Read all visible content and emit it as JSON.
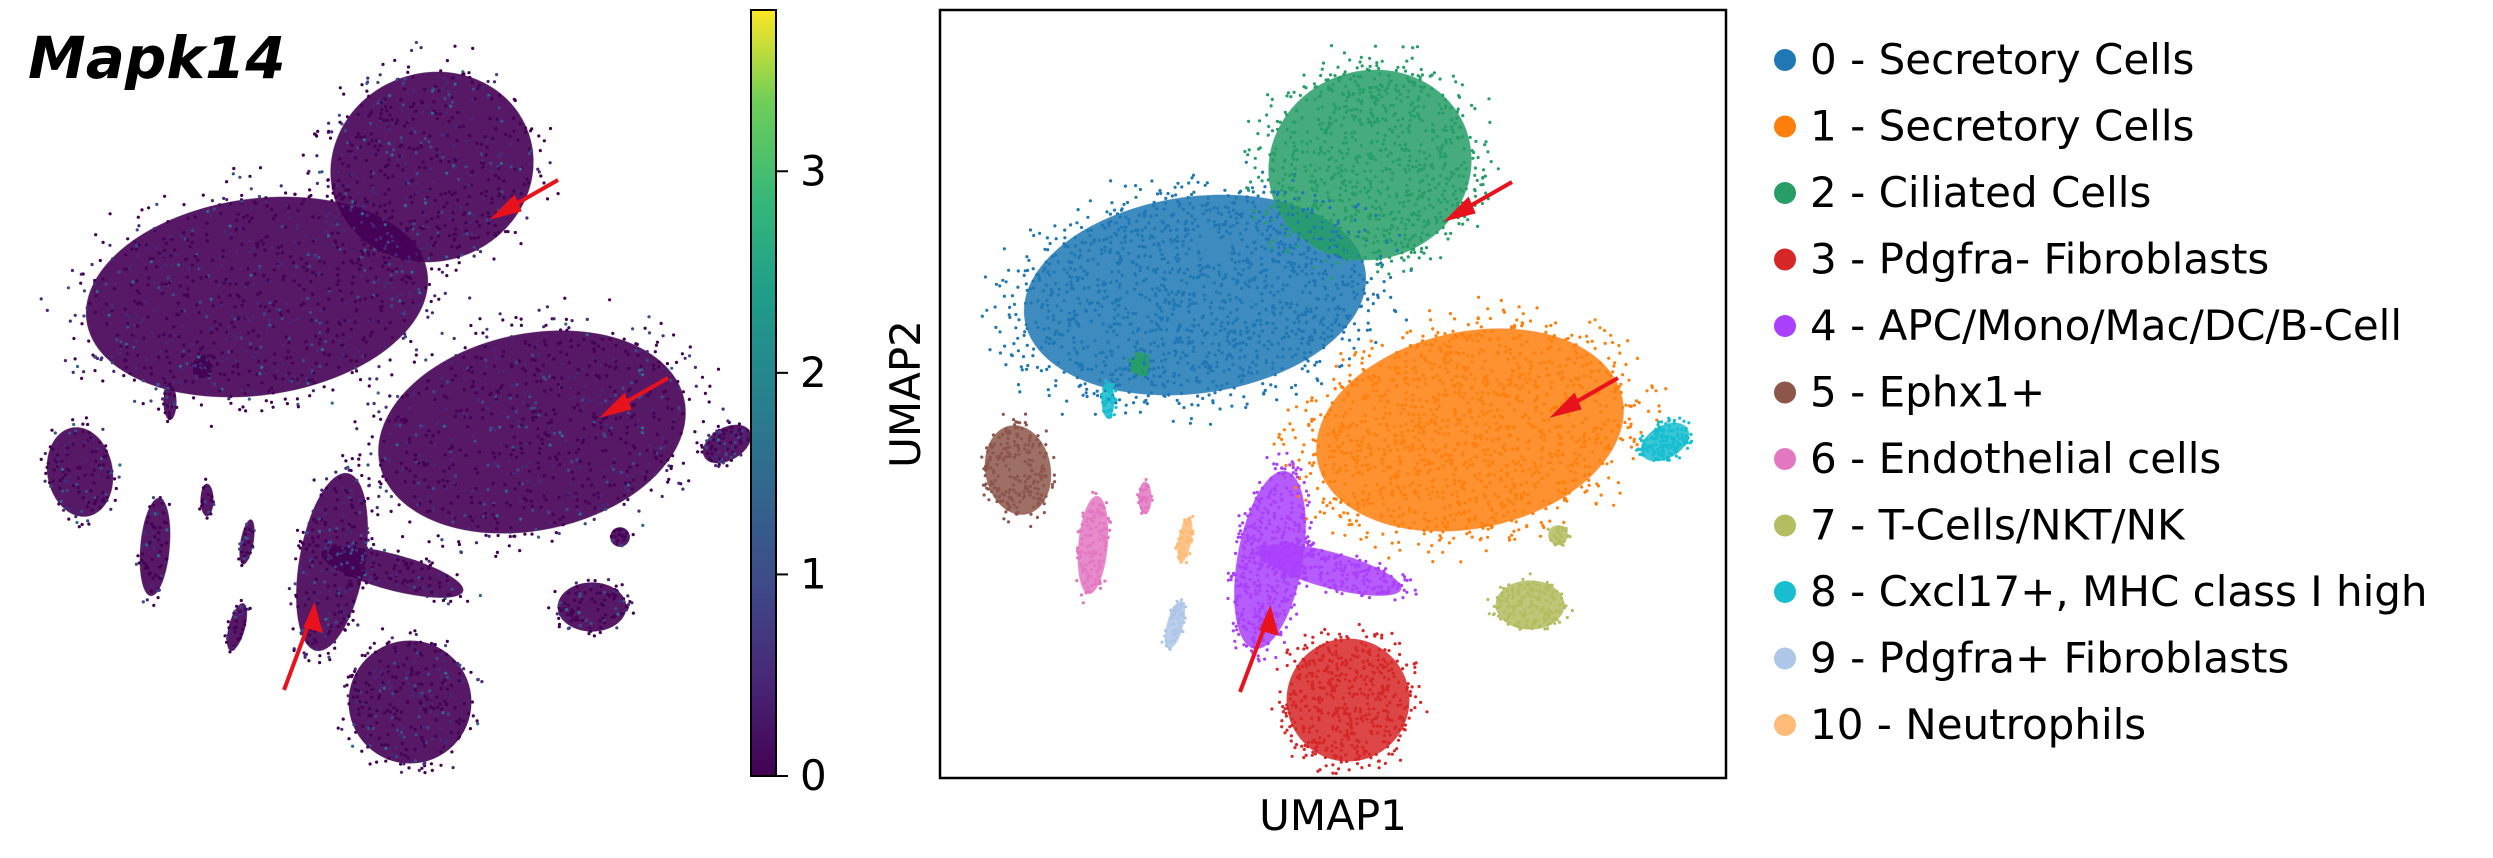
{
  "figure": {
    "gene_label": "Mapk14",
    "colorbar": {
      "colormap": "viridis",
      "range": [
        0,
        3.8
      ],
      "ticks": [
        {
          "value": 0,
          "label": "0"
        },
        {
          "value": 1,
          "label": "1"
        },
        {
          "value": 2,
          "label": "2"
        },
        {
          "value": 3,
          "label": "3"
        }
      ]
    },
    "umap": {
      "xlabel": "UMAP1",
      "ylabel": "UMAP2"
    },
    "arrow_color": "#e8121c"
  },
  "chart_data": [
    {
      "type": "scatter",
      "title": "Mapk14",
      "xlabel": "",
      "ylabel": "",
      "color_scale": "viridis",
      "color_range": [
        0,
        3.8
      ],
      "annotations": [
        "red arrow",
        "red arrow",
        "red arrow"
      ]
    },
    {
      "type": "scatter",
      "xlabel": "UMAP1",
      "ylabel": "UMAP2",
      "grid": false,
      "legend_position": "right",
      "series": [
        {
          "name": "0 - Secretory Cells",
          "color": "#1f77b4"
        },
        {
          "name": "1 - Secretory Cells",
          "color": "#ff7f0e"
        },
        {
          "name": "2 - Ciliated Cells",
          "color": "#279e68"
        },
        {
          "name": "3 - Pdgfra- Fibroblasts",
          "color": "#d62728"
        },
        {
          "name": "4 - APC/Mono/Mac/DC/B-Cell",
          "color": "#aa40fc"
        },
        {
          "name": "5 - Ephx1+",
          "color": "#8c564b"
        },
        {
          "name": "6 - Endothelial cells",
          "color": "#e377c2"
        },
        {
          "name": "7 - T-Cells/NKT/NK",
          "color": "#b5bd61"
        },
        {
          "name": "8 - Cxcl17+, MHC class I high",
          "color": "#17becf"
        },
        {
          "name": "9 - Pdgfra+ Fibroblasts",
          "color": "#aec7e8"
        },
        {
          "name": "10 - Neutrophils",
          "color": "#ffbb78"
        }
      ],
      "annotations": [
        "red arrow",
        "red arrow",
        "red arrow"
      ]
    }
  ]
}
